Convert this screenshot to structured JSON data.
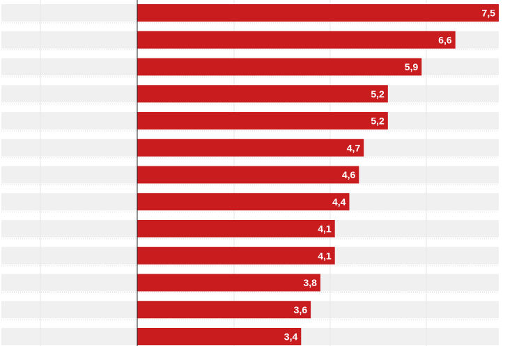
{
  "colors": {
    "bar": "#c91c1f",
    "row_band": "#f0f0f0",
    "value_text": "#ffffff"
  },
  "chart_data": {
    "type": "bar",
    "orientation": "horizontal",
    "title": "",
    "xlabel": "",
    "ylabel": "",
    "categories": [
      "",
      "",
      "",
      "",
      "",
      "",
      "",
      "",
      "",
      "",
      "",
      "",
      ""
    ],
    "values": [
      7.5,
      6.6,
      5.9,
      5.2,
      5.2,
      4.7,
      4.6,
      4.4,
      4.1,
      4.1,
      3.8,
      3.6,
      3.4
    ],
    "labels": [
      "7,5",
      "6,6",
      "5,9",
      "5,2",
      "5,2",
      "4,7",
      "4,6",
      "4,4",
      "4,1",
      "4,1",
      "3,8",
      "3,6",
      "3,4"
    ],
    "xlim": [
      0,
      7.5
    ],
    "grid": true
  }
}
